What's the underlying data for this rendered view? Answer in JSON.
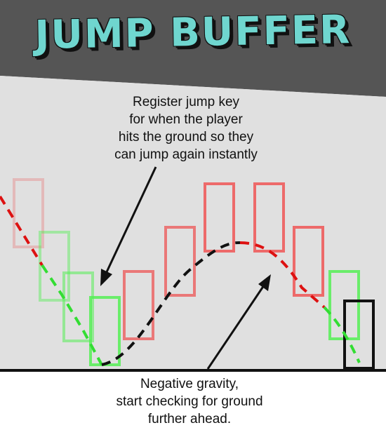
{
  "title": "JUMP BUFFER",
  "caption_top": {
    "lines": [
      "Register jump key",
      "for when the player",
      "hits the ground so they",
      "can jump again instantly"
    ]
  },
  "caption_bottom": {
    "lines": [
      "Negative gravity,",
      "start checking for ground",
      "further ahead."
    ]
  },
  "colors": {
    "header_bg": "#555555",
    "panel_bg": "#e0e0e0",
    "title_fill": "#6fd6cf",
    "ground_box": "#55ee55",
    "air_box": "#ee5555",
    "active_box": "#111111",
    "arrow": "#111111"
  }
}
